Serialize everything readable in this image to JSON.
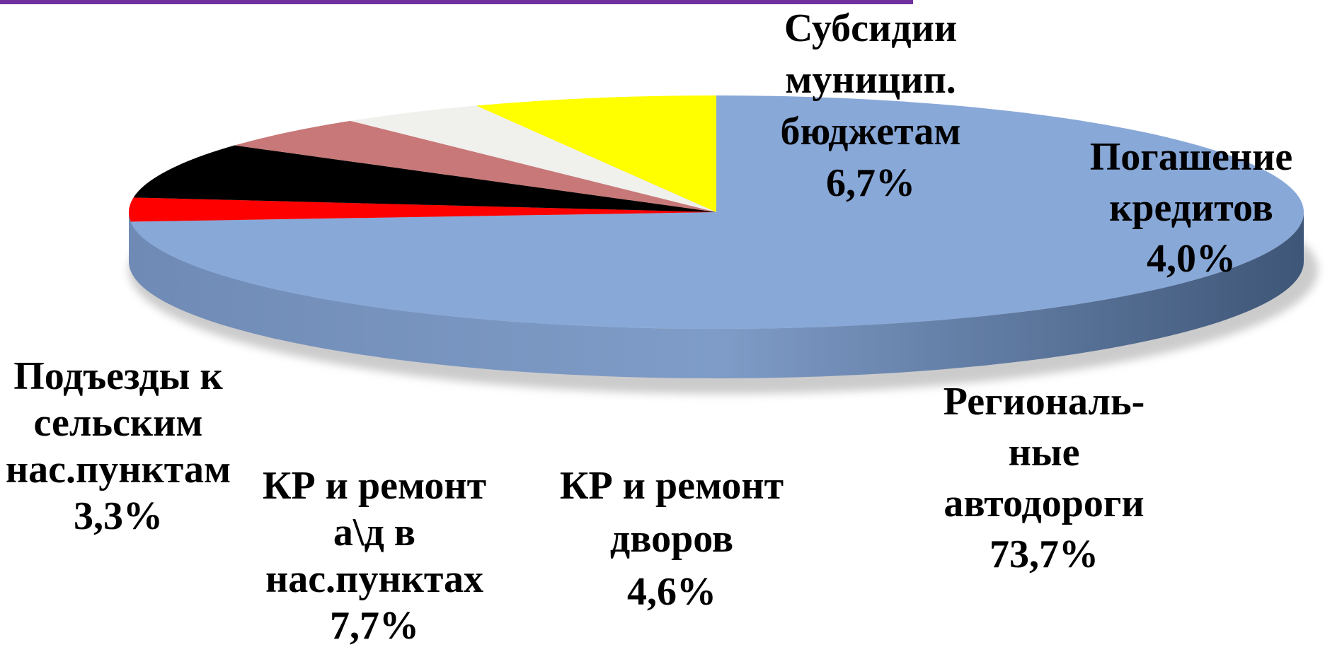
{
  "chart_data": {
    "type": "pie",
    "categories": [
      [
        "Региональ-",
        "ные",
        "автодороги"
      ],
      [
        "Подъезды к",
        "сельским",
        "нас.пунктам"
      ],
      [
        "КР и ремонт",
        "а\\д в",
        "нас.пунктах"
      ],
      [
        "КР и ремонт",
        "дворов"
      ],
      [
        "Погашение",
        "кредитов"
      ],
      [
        "Субсидии",
        "муницип.",
        "бюджетам"
      ]
    ],
    "values": [
      73.7,
      3.3,
      7.7,
      4.6,
      4.0,
      6.7
    ],
    "value_labels": [
      "73,7%",
      "3,3%",
      "7,7%",
      "4,6%",
      "4,0%",
      "6,7%"
    ],
    "colors": [
      "#88a8d8",
      "#ff0000",
      "#000000",
      "#c87878",
      "#f0f0ec",
      "#ffff00"
    ]
  }
}
